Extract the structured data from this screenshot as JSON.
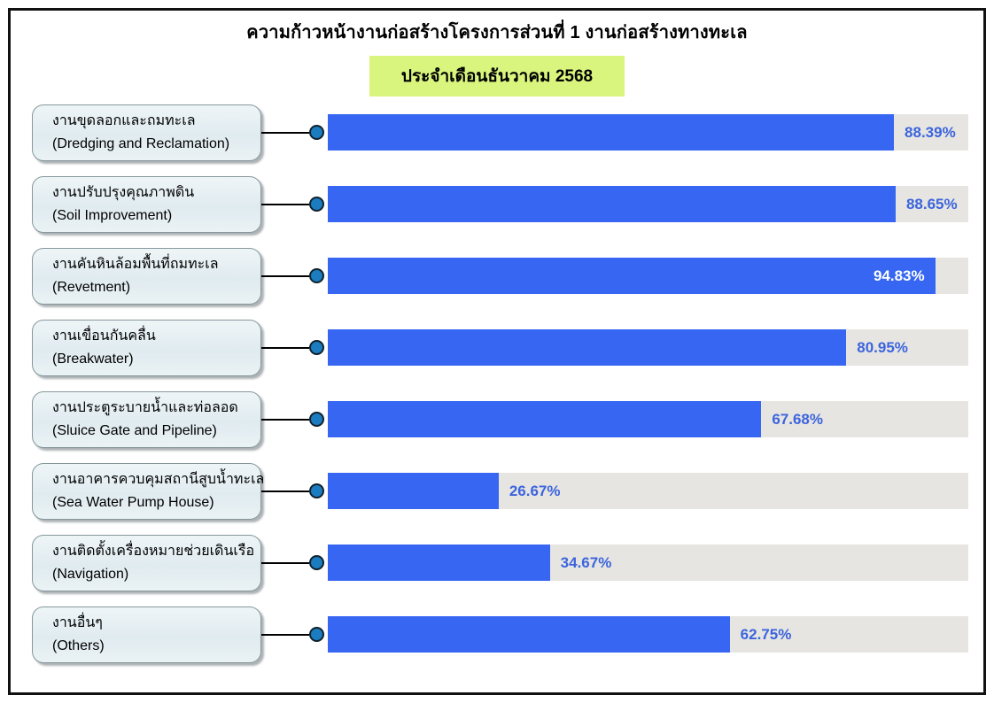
{
  "title": "ความก้าวหน้างานก่อสร้างโครงการส่วนที่ 1 งานก่อสร้างทางทะเล",
  "subtitle": "ประจำเดือนธันวาคม 2568",
  "colors": {
    "bar_fill": "#3666F2",
    "bar_track": "#E6E5E1",
    "value_text_outside": "#3C64DE",
    "value_text_inside": "#FFFFFF",
    "subtitle_background": "#D9F57E",
    "connector_dot": "#1B7CC0",
    "frame_border": "#111111",
    "label_box_border": "#86979C"
  },
  "chart_data": {
    "type": "bar",
    "orientation": "horizontal",
    "title": "ความก้าวหน้างานก่อสร้างโครงการส่วนที่ 1 งานก่อสร้างทางทะเล",
    "subtitle": "ประจำเดือนธันวาคม 2568",
    "unit": "%",
    "xlim": [
      0,
      100
    ],
    "grid": false,
    "legend": false,
    "rows": [
      {
        "label_thai": "งานขุดลอกและถมทะเล",
        "label_english": "(Dredging and Reclamation)",
        "value": 88.39,
        "value_label": "88.39%",
        "value_label_position": "outside"
      },
      {
        "label_thai": "งานปรับปรุงคุณภาพดิน",
        "label_english": "(Soil Improvement)",
        "value": 88.65,
        "value_label": "88.65%",
        "value_label_position": "outside"
      },
      {
        "label_thai": "งานคันหินล้อมพื้นที่ถมทะเล",
        "label_english": "(Revetment)",
        "value": 94.83,
        "value_label": "94.83%",
        "value_label_position": "inside"
      },
      {
        "label_thai": "งานเขื่อนกันคลื่น",
        "label_english": "(Breakwater)",
        "value": 80.95,
        "value_label": "80.95%",
        "value_label_position": "outside"
      },
      {
        "label_thai": "งานประตูระบายน้ำและท่อลอด",
        "label_english": "(Sluice Gate and Pipeline)",
        "value": 67.68,
        "value_label": "67.68%",
        "value_label_position": "outside"
      },
      {
        "label_thai": "งานอาคารควบคุมสถานีสูบน้ำทะเล",
        "label_english": "(Sea Water Pump House)",
        "value": 26.67,
        "value_label": "26.67%",
        "value_label_position": "outside"
      },
      {
        "label_thai": "งานติดตั้งเครื่องหมายช่วยเดินเรือ",
        "label_english": "(Navigation)",
        "value": 34.67,
        "value_label": "34.67%",
        "value_label_position": "outside"
      },
      {
        "label_thai": "งานอื่นๆ",
        "label_english": "(Others)",
        "value": 62.75,
        "value_label": "62.75%",
        "value_label_position": "outside"
      }
    ]
  }
}
